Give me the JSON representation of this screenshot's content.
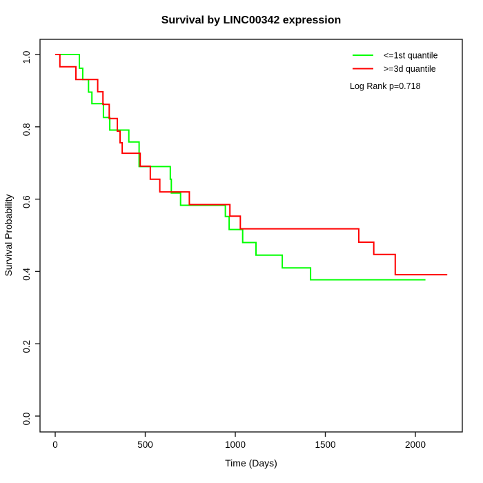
{
  "chart_data": {
    "type": "line",
    "subtype": "kaplan-meier-step",
    "title": "Survival by LINC00342 expression",
    "xlabel": "Time (Days)",
    "ylabel": "Survival Probability",
    "xlim": [
      0,
      2260
    ],
    "ylim": [
      0.0,
      1.0
    ],
    "xticks": [
      0,
      500,
      1000,
      1500,
      2000
    ],
    "yticks": [
      "0.0",
      "0.2",
      "0.4",
      "0.6",
      "0.8",
      "1.0"
    ],
    "grid": false,
    "legend_position": "top-right",
    "annotation": "Log Rank p=0.718",
    "colors": {
      "low_group": "#00ff00",
      "high_group": "#ff0000",
      "axis": "#1a1a1a"
    },
    "series": [
      {
        "name": "<=1st quantile",
        "color": "#00ff00",
        "end_time": 2056,
        "points": [
          [
            0,
            1.0
          ],
          [
            134,
            0.962
          ],
          [
            153,
            0.931
          ],
          [
            185,
            0.896
          ],
          [
            204,
            0.864
          ],
          [
            268,
            0.826
          ],
          [
            303,
            0.791
          ],
          [
            409,
            0.758
          ],
          [
            466,
            0.69
          ],
          [
            639,
            0.655
          ],
          [
            645,
            0.617
          ],
          [
            696,
            0.583
          ],
          [
            945,
            0.552
          ],
          [
            966,
            0.516
          ],
          [
            1041,
            0.48
          ],
          [
            1115,
            0.445
          ],
          [
            1261,
            0.41
          ],
          [
            1418,
            0.377
          ]
        ]
      },
      {
        "name": ">=3d quantile",
        "color": "#ff0000",
        "end_time": 2177,
        "points": [
          [
            0,
            1.0
          ],
          [
            26,
            0.966
          ],
          [
            115,
            0.931
          ],
          [
            236,
            0.897
          ],
          [
            265,
            0.862
          ],
          [
            300,
            0.823
          ],
          [
            345,
            0.788
          ],
          [
            360,
            0.756
          ],
          [
            372,
            0.727
          ],
          [
            472,
            0.691
          ],
          [
            528,
            0.655
          ],
          [
            581,
            0.62
          ],
          [
            745,
            0.585
          ],
          [
            970,
            0.553
          ],
          [
            1028,
            0.518
          ],
          [
            1686,
            0.481
          ],
          [
            1769,
            0.447
          ],
          [
            1888,
            0.391
          ]
        ]
      }
    ]
  }
}
